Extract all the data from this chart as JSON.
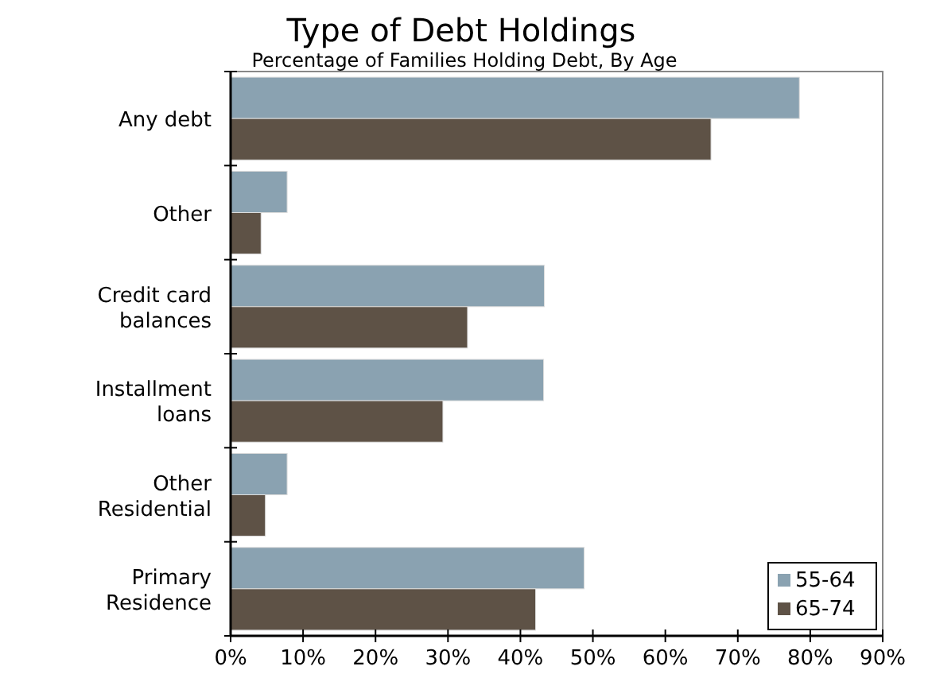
{
  "chart_data": {
    "type": "bar",
    "orientation": "horizontal",
    "title": "Type of Debt Holdings",
    "subtitle": "Percentage of Families Holding Debt, By Age",
    "categories": [
      "Any debt",
      "Other",
      "Credit card balances",
      "Installment loans",
      "Other Residential",
      "Primary Residence"
    ],
    "series": [
      {
        "name": "55-64",
        "color": "#8aa2b1",
        "values": [
          78.5,
          7.8,
          43.3,
          43.2,
          7.8,
          48.8
        ]
      },
      {
        "name": "65-74",
        "color": "#5e5246",
        "values": [
          66.3,
          4.2,
          32.7,
          29.3,
          4.8,
          42.1
        ]
      }
    ],
    "xlim": [
      0,
      90
    ],
    "xticks": [
      {
        "value": 0,
        "label": "0%"
      },
      {
        "value": 10,
        "label": "10%"
      },
      {
        "value": 20,
        "label": "20%"
      },
      {
        "value": 30,
        "label": "30%"
      },
      {
        "value": 40,
        "label": "40%"
      },
      {
        "value": 50,
        "label": "50%"
      },
      {
        "value": 60,
        "label": "60%"
      },
      {
        "value": 70,
        "label": "70%"
      },
      {
        "value": 80,
        "label": "80%"
      },
      {
        "value": 90,
        "label": "90%"
      }
    ],
    "grid": false,
    "legend": "bottom right"
  }
}
